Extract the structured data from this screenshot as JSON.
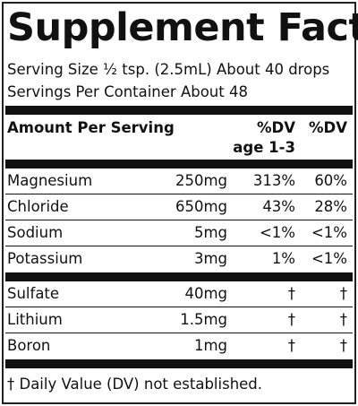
{
  "title": "Supplement Facts",
  "serving": [
    "Serving Size ½ tsp. (2.5mL) About 40 drops",
    "Servings Per Container About 48"
  ],
  "header": {
    "amount": "Amount Per Serving",
    "dv_child": [
      "%DV",
      "age 1-3"
    ],
    "dv": "%DV"
  },
  "groups": [
    [
      [
        "Magnesium",
        "250mg",
        "313%",
        "60%"
      ],
      [
        "Chloride",
        "650mg",
        "43%",
        "28%"
      ],
      [
        "Sodium",
        "5mg",
        "<1%",
        "<1%"
      ],
      [
        "Potassium",
        "3mg",
        "1%",
        "<1%"
      ]
    ],
    [
      [
        "Sulfate",
        "40mg",
        "†",
        "†"
      ],
      [
        "Lithium",
        "1.5mg",
        "†",
        "†"
      ],
      [
        "Boron",
        "1mg",
        "†",
        "†"
      ]
    ]
  ],
  "footnote": "† Daily Value (DV) not established."
}
